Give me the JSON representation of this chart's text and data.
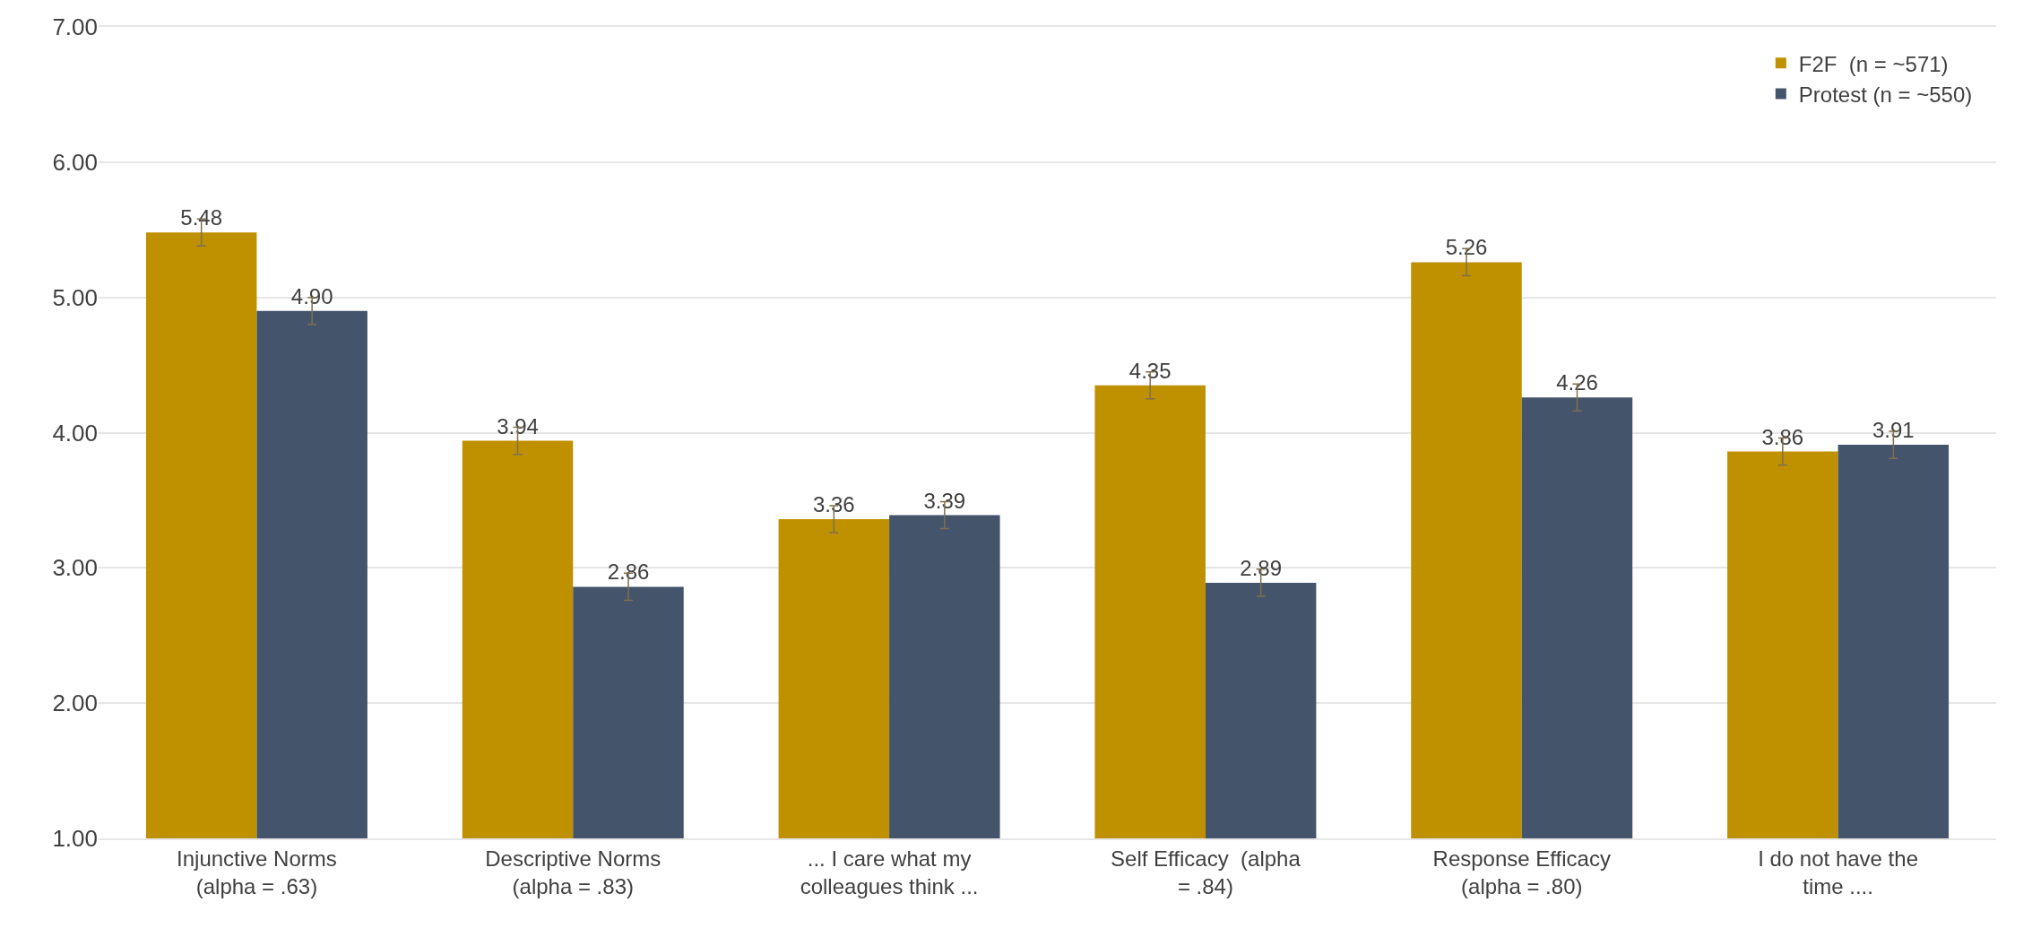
{
  "chart_data": {
    "type": "bar",
    "categories": [
      "Injunctive Norms\n(alpha = .63)",
      "Descriptive Norms\n(alpha = .83)",
      "... I care what my\ncolleagues think ...",
      "Self Efficacy  (alpha\n= .84)",
      "Response Efficacy\n(alpha = .80)",
      "I do not have the\ntime ...."
    ],
    "series": [
      {
        "name": "F2F  (n = ~571)",
        "color": "#bf9000",
        "values": [
          5.48,
          3.94,
          3.36,
          4.35,
          5.26,
          3.86
        ],
        "value_labels": [
          "5.48",
          "3.94",
          "3.36",
          "4.35",
          "5.26",
          "3.86"
        ],
        "errors": [
          0.1,
          0.1,
          0.1,
          0.1,
          0.1,
          0.1
        ]
      },
      {
        "name": "Protest (n = ~550)",
        "color": "#44546a",
        "values": [
          4.9,
          2.86,
          3.39,
          2.89,
          4.26,
          3.91
        ],
        "value_labels": [
          "4.90",
          "2.86",
          "3.39",
          "2.89",
          "4.26",
          "3.91"
        ],
        "errors": [
          0.1,
          0.1,
          0.1,
          0.1,
          0.1,
          0.1
        ]
      }
    ],
    "ylim": [
      1,
      7
    ],
    "yticks": [
      {
        "value": 1,
        "label": "1.00"
      },
      {
        "value": 2,
        "label": "2.00"
      },
      {
        "value": 3,
        "label": "3.00"
      },
      {
        "value": 4,
        "label": "4.00"
      },
      {
        "value": 5,
        "label": "5.00"
      },
      {
        "value": 6,
        "label": "6.00"
      },
      {
        "value": 7,
        "label": "7.00"
      }
    ],
    "grid": "y",
    "legend": "top right"
  }
}
